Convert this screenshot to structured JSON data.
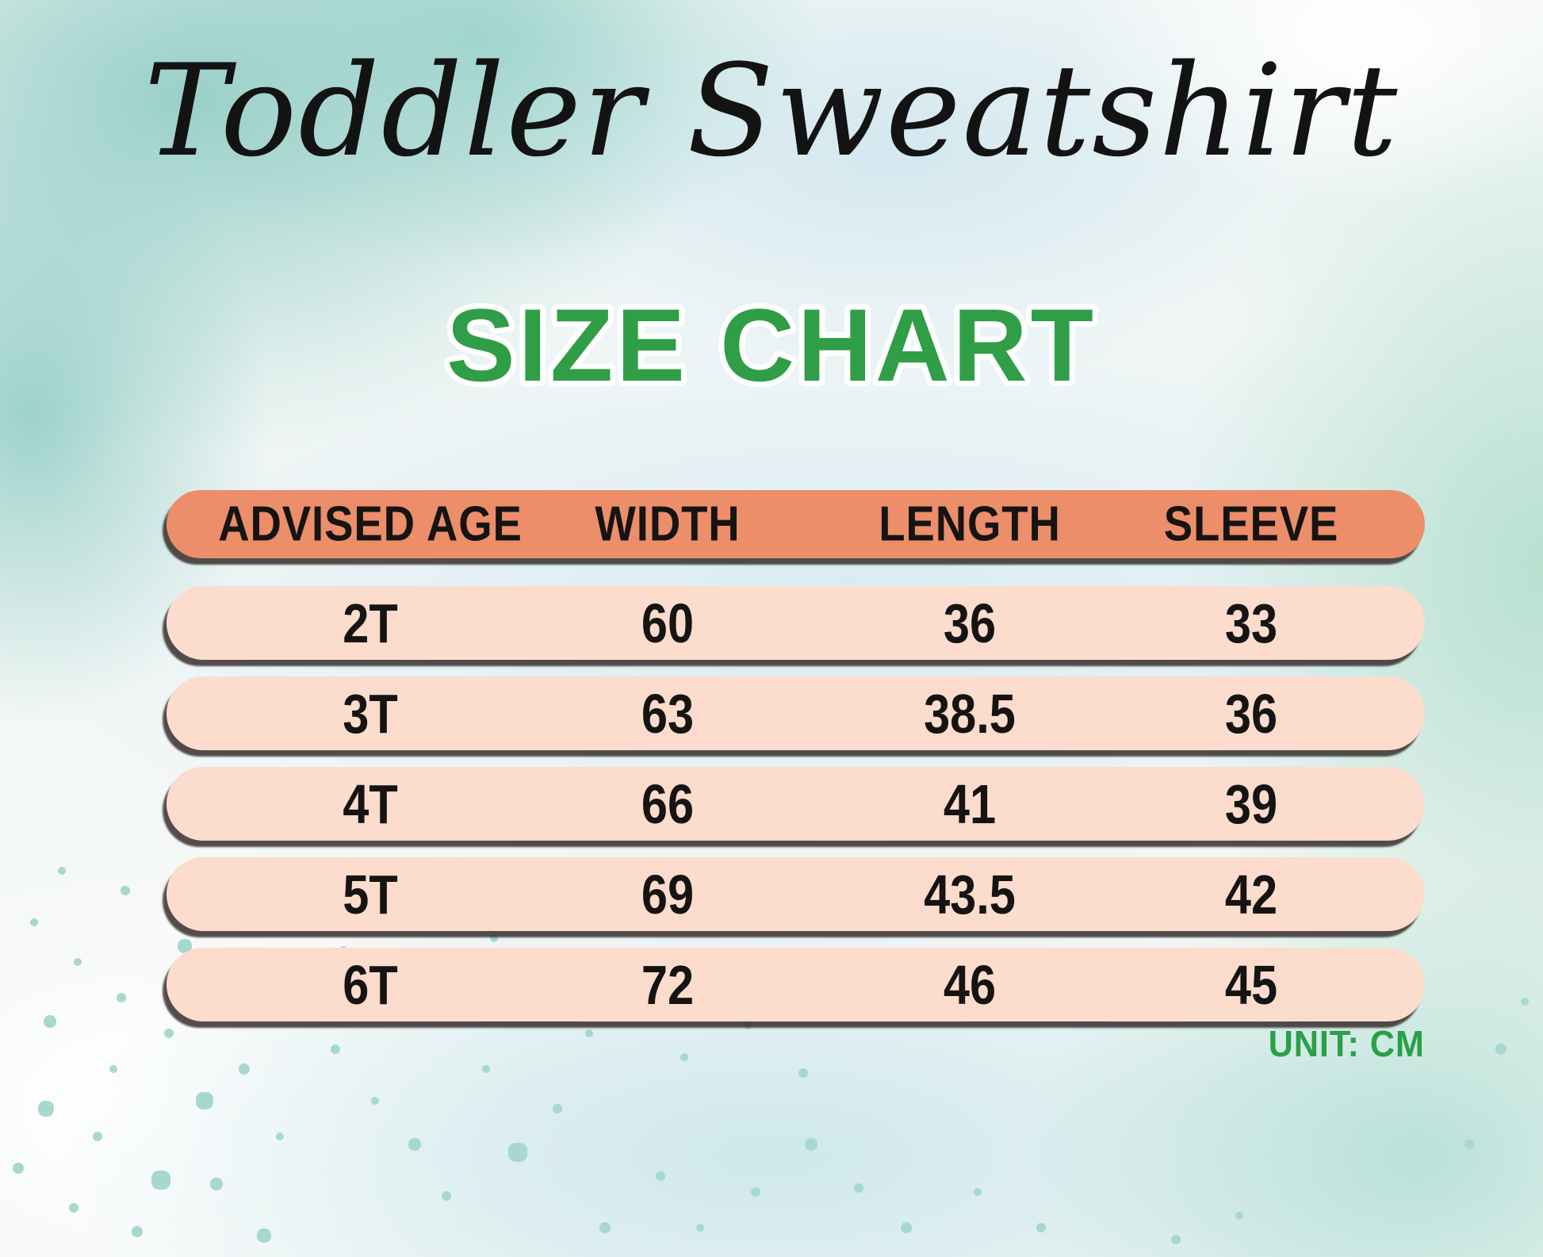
{
  "poster": {
    "title": "Toddler Sweatshirt",
    "heading": "SIZE CHART",
    "unit_note": "UNIT: CM"
  },
  "colors": {
    "heading_green": "#2f9e46",
    "unit_green": "#2aa047",
    "header_bar_orange": "#ec8e6a",
    "row_bar_pink": "#fcdccc",
    "text_black": "#161412",
    "title_black": "#131313",
    "speckle_teal": "#a7d8cf"
  },
  "chart_data": {
    "type": "table",
    "title": "Toddler Sweatshirt SIZE CHART",
    "columns": [
      "ADVISED AGE",
      "WIDTH",
      "LENGTH",
      "SLEEVE"
    ],
    "rows": [
      [
        "2T",
        "60",
        "36",
        "33"
      ],
      [
        "3T",
        "63",
        "38.5",
        "36"
      ],
      [
        "4T",
        "66",
        "41",
        "39"
      ],
      [
        "5T",
        "69",
        "43.5",
        "42"
      ],
      [
        "6T",
        "72",
        "46",
        "45"
      ]
    ],
    "unit": "CM",
    "layout": "header row orange pill, 5 pink pill rows, unit note bottom-right"
  }
}
